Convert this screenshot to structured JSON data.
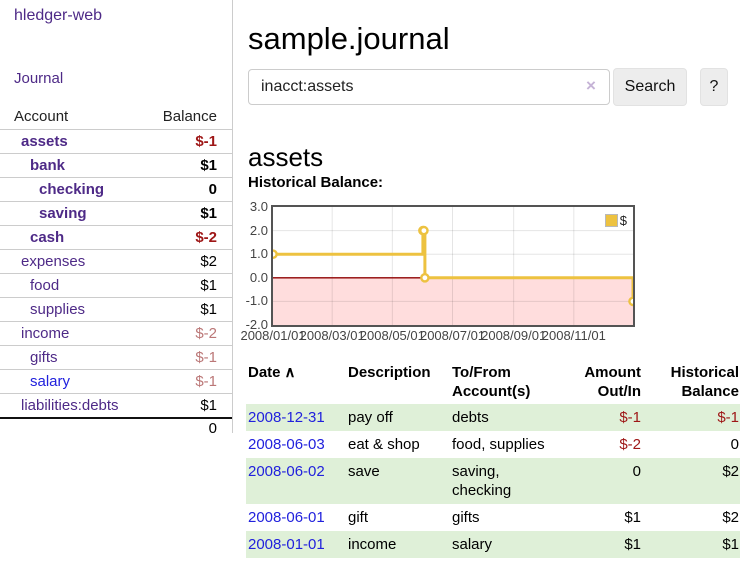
{
  "colors": {
    "purple_link": "#4e2a87",
    "blue_link": "#2121dd",
    "negative_strong": "#9e1616",
    "negative_soft": "#bb7777",
    "shaded_row_green": "#dff0d8",
    "series_yellow": "#edc240",
    "negative_region_pink": "#ffdddd",
    "zero_line_red": "#8e0000"
  },
  "sidebar": {
    "app_title": "hledger-web",
    "journal_link": "Journal",
    "accounts": {
      "header": {
        "account": "Account",
        "balance": "Balance"
      },
      "rows": [
        {
          "name": "assets",
          "balance": "$-1",
          "depth": 1,
          "bold": true,
          "balance_color": "neg_strong"
        },
        {
          "name": "bank",
          "balance": "$1",
          "depth": 2,
          "bold": true,
          "balance_color": "normal"
        },
        {
          "name": "checking",
          "balance": "0",
          "depth": 3,
          "bold": true,
          "balance_color": "normal"
        },
        {
          "name": "saving",
          "balance": "$1",
          "depth": 3,
          "bold": true,
          "balance_color": "normal"
        },
        {
          "name": "cash",
          "balance": "$-2",
          "depth": 2,
          "bold": true,
          "balance_color": "neg_strong"
        },
        {
          "name": "expenses",
          "balance": "$2",
          "depth": 1,
          "bold": false,
          "balance_color": "normal"
        },
        {
          "name": "food",
          "balance": "$1",
          "depth": 2,
          "bold": false,
          "balance_color": "normal"
        },
        {
          "name": "supplies",
          "balance": "$1",
          "depth": 2,
          "bold": false,
          "balance_color": "normal"
        },
        {
          "name": "income",
          "balance": "$-2",
          "depth": 1,
          "bold": false,
          "balance_color": "neg_soft"
        },
        {
          "name": "gifts",
          "balance": "$-1",
          "depth": 2,
          "bold": false,
          "balance_color": "neg_soft"
        },
        {
          "name": "salary",
          "balance": "$-1",
          "depth": 2,
          "bold": false,
          "balance_color": "neg_soft",
          "name_color": "blue"
        },
        {
          "name": "liabilities:debts",
          "balance": "$1",
          "depth": 1,
          "bold": false,
          "balance_color": "normal"
        }
      ],
      "total": "0"
    }
  },
  "main": {
    "title": "sample.journal",
    "search": {
      "value": "inacct:assets",
      "clear_icon": "×",
      "search_label": "Search",
      "help_label": "?"
    },
    "account_heading": "assets",
    "chart_heading": "Historical Balance:"
  },
  "chart_data": {
    "type": "line",
    "step": true,
    "title": "Historical Balance",
    "x_start": "2008-01-01",
    "x_end": "2008-12-31",
    "ylim": [
      -2,
      3
    ],
    "y_ticks": [
      {
        "label": "3.0",
        "value": 3
      },
      {
        "label": "2.0",
        "value": 2
      },
      {
        "label": "1.0",
        "value": 1
      },
      {
        "label": "0.0",
        "value": 0
      },
      {
        "label": "-1.0",
        "value": -1
      },
      {
        "label": "-2.0",
        "value": -2
      }
    ],
    "x_tick_labels": [
      "2008/01/01",
      "2008/03/01",
      "2008/05/01",
      "2008/07/01",
      "2008/09/01",
      "2008/11/01"
    ],
    "series": [
      {
        "name": "$",
        "color": "#edc240",
        "points": [
          {
            "date": "2008-01-01",
            "value": 1
          },
          {
            "date": "2008-06-01",
            "value": 2
          },
          {
            "date": "2008-06-02",
            "value": 2
          },
          {
            "date": "2008-06-03",
            "value": 0
          },
          {
            "date": "2008-12-31",
            "value": -1
          }
        ]
      }
    ],
    "legend": {
      "position": "top-right",
      "label": "$"
    },
    "negative_region": true,
    "grid": true
  },
  "register": {
    "headers": [
      {
        "label": "Date",
        "sort_icon": "∧"
      },
      {
        "label": "Description"
      },
      {
        "label": "To/From Account(s)"
      },
      {
        "label": "Amount Out/In"
      },
      {
        "label": "Historical Balance"
      }
    ],
    "rows": [
      {
        "date": "2008-12-31",
        "description": "pay off",
        "accounts": "debts",
        "amount": "$-1",
        "amount_negative": true,
        "balance": "$-1",
        "balance_negative": true,
        "shaded": true
      },
      {
        "date": "2008-06-03",
        "description": "eat & shop",
        "accounts": "food, supplies",
        "amount": "$-2",
        "amount_negative": true,
        "balance": "0",
        "balance_negative": false,
        "shaded": false
      },
      {
        "date": "2008-06-02",
        "description": "save",
        "accounts": "saving, checking",
        "amount": "0",
        "amount_negative": false,
        "balance": "$2",
        "balance_negative": false,
        "shaded": true
      },
      {
        "date": "2008-06-01",
        "description": "gift",
        "accounts": "gifts",
        "amount": "$1",
        "amount_negative": false,
        "balance": "$2",
        "balance_negative": false,
        "shaded": false
      },
      {
        "date": "2008-01-01",
        "description": "income",
        "accounts": "salary",
        "amount": "$1",
        "amount_negative": false,
        "balance": "$1",
        "balance_negative": false,
        "shaded": true
      }
    ]
  }
}
